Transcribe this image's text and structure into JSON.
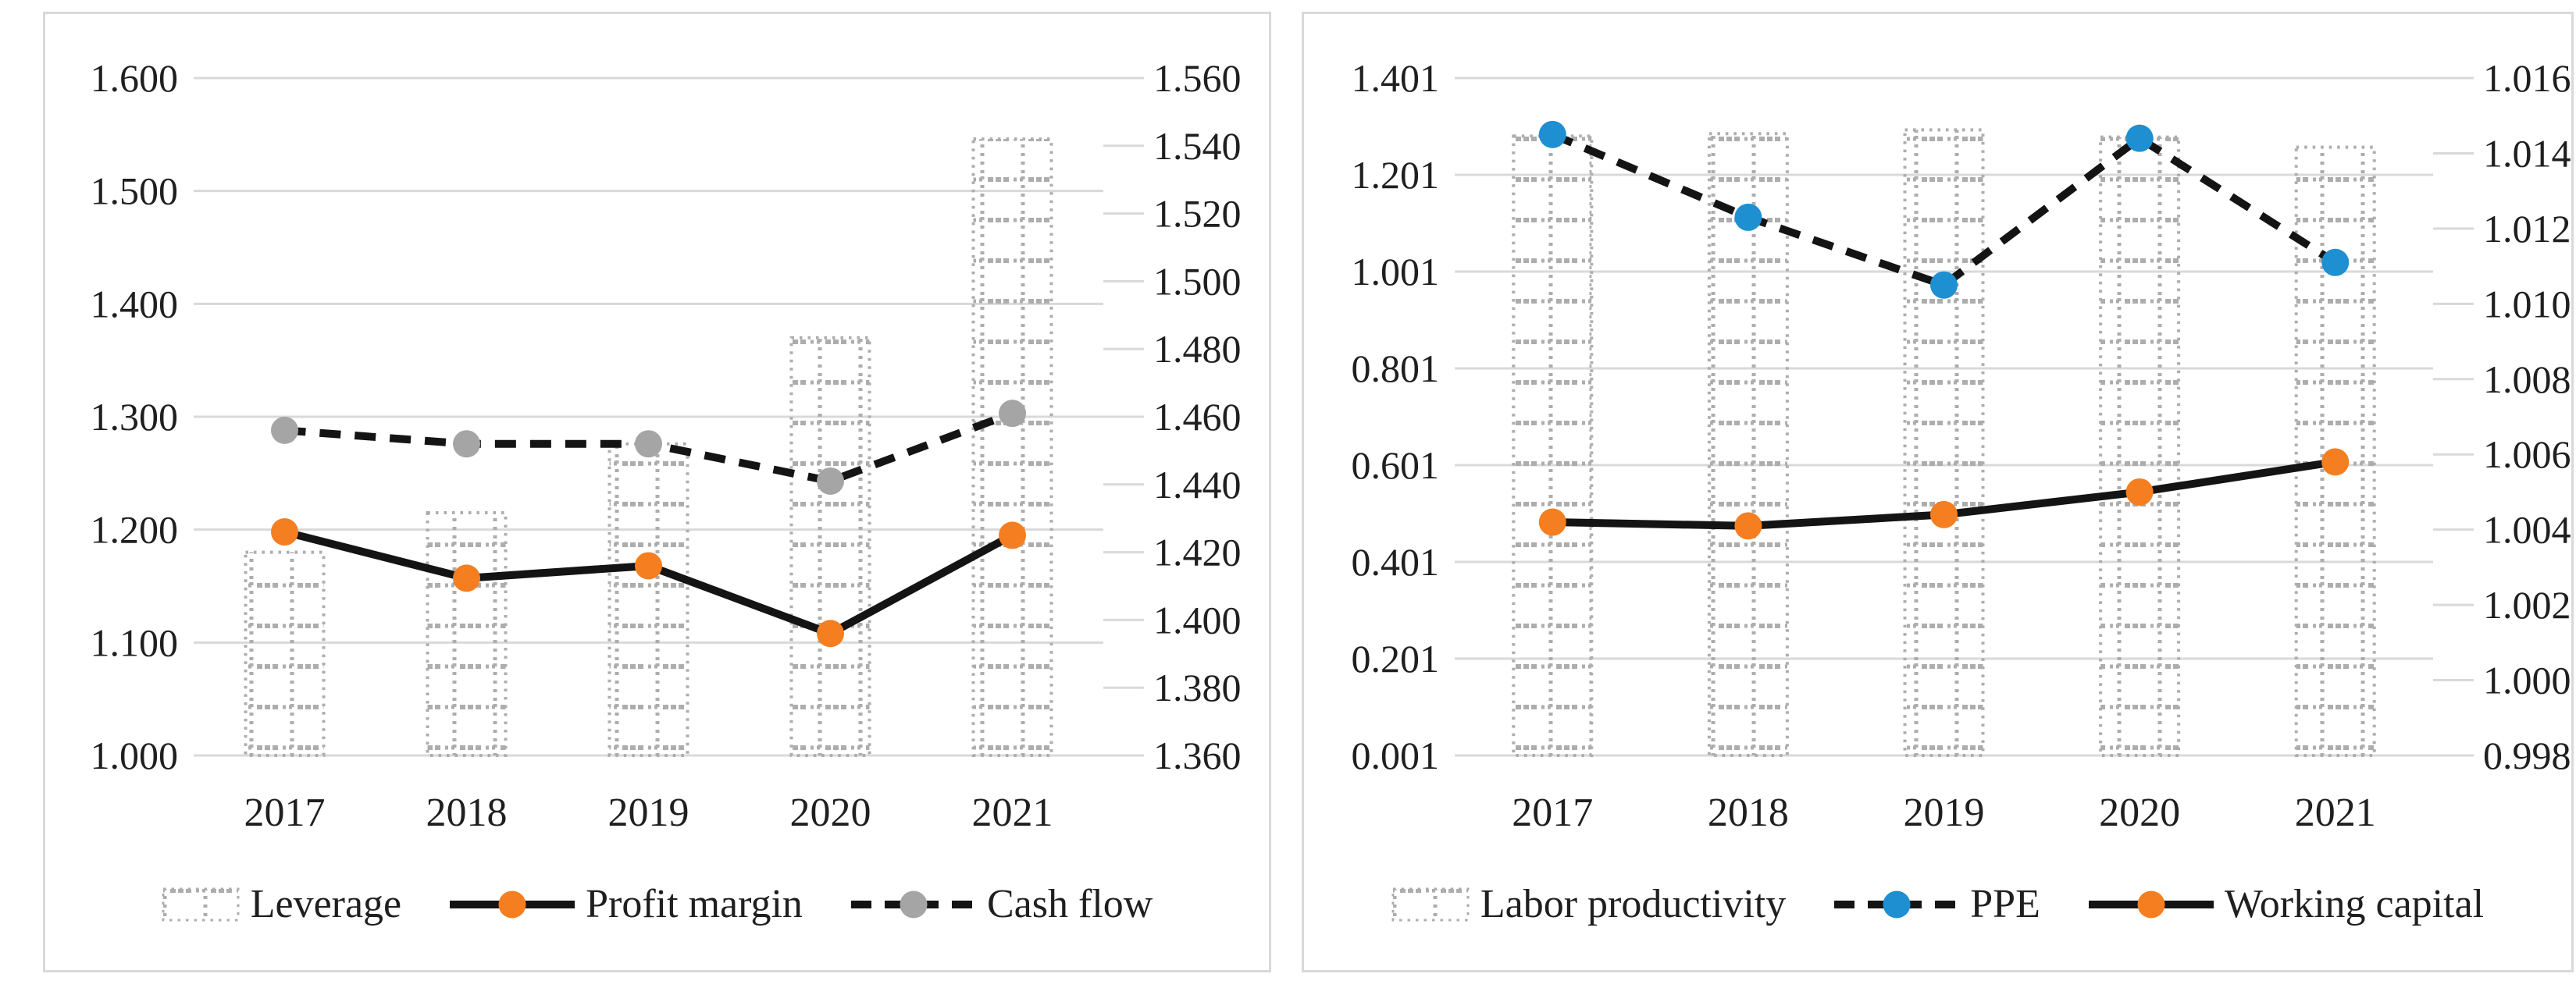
{
  "colors": {
    "background": "#ffffff",
    "panel_border": "#d9d9d9",
    "gridline": "#d9d9d9",
    "axis_text": "#1f1f1f",
    "pattern_gray": "#adadad",
    "line_black": "#141414",
    "orange_marker": "#f57e20",
    "gray_marker": "#a5a5a5",
    "blue_marker": "#1e8fd1"
  },
  "chart_data": [
    {
      "name": "left-combo-chart",
      "type": "bar",
      "subtype": "bar+line combo, dual y-axis, horizontal gridlines on, legend bottom",
      "title": "",
      "xlabel": "",
      "ylabel": "",
      "categories": [
        "2017",
        "2018",
        "2019",
        "2020",
        "2021"
      ],
      "left_axis": {
        "min": 1.0,
        "max": 1.6,
        "ticks": [
          "1.600",
          "1.500",
          "1.400",
          "1.300",
          "1.200",
          "1.100",
          "1.000"
        ]
      },
      "right_axis": {
        "min": 1.36,
        "max": 1.56,
        "ticks": [
          "1.560",
          "1.540",
          "1.520",
          "1.500",
          "1.480",
          "1.460",
          "1.440",
          "1.420",
          "1.400",
          "1.380",
          "1.360"
        ]
      },
      "series": [
        {
          "name": "Leverage",
          "type": "bar",
          "axis": "left",
          "fill": "pattern",
          "values": [
            1.18,
            1.215,
            1.276,
            1.37,
            1.546
          ]
        },
        {
          "name": "Profit margin",
          "type": "line",
          "line_style": "solid",
          "axis": "left",
          "marker_color_key": "orange_marker",
          "values": [
            1.198,
            1.157,
            1.168,
            1.108,
            1.195
          ]
        },
        {
          "name": "Cash flow",
          "type": "line",
          "line_style": "dashed",
          "axis": "right",
          "marker_color_key": "gray_marker",
          "values": [
            1.456,
            1.452,
            1.452,
            1.441,
            1.461
          ]
        }
      ]
    },
    {
      "name": "right-combo-chart",
      "type": "bar",
      "subtype": "bar+line combo, dual y-axis, horizontal gridlines on, legend bottom",
      "title": "",
      "xlabel": "",
      "ylabel": "",
      "categories": [
        "2017",
        "2018",
        "2019",
        "2020",
        "2021"
      ],
      "left_axis": {
        "min": 0.001,
        "max": 1.401,
        "ticks": [
          "1.401",
          "1.201",
          "1.001",
          "0.801",
          "0.601",
          "0.401",
          "0.201",
          "0.001"
        ]
      },
      "right_axis": {
        "min": 0.998,
        "max": 1.016,
        "ticks": [
          "1.016",
          "1.014",
          "1.012",
          "1.010",
          "1.008",
          "1.006",
          "1.004",
          "1.002",
          "1.000",
          "0.998"
        ]
      },
      "series": [
        {
          "name": "Labor productivity",
          "type": "bar",
          "axis": "left",
          "fill": "pattern",
          "values": [
            1.281,
            1.286,
            1.294,
            1.279,
            1.258
          ]
        },
        {
          "name": "PPE",
          "type": "line",
          "line_style": "dashed",
          "axis": "right",
          "marker_color_key": "blue_marker",
          "values": [
            1.0145,
            1.0123,
            1.0105,
            1.0144,
            1.0111
          ]
        },
        {
          "name": "Working capital",
          "type": "line",
          "line_style": "solid",
          "axis": "right",
          "marker_color_key": "orange_marker",
          "values": [
            1.0042,
            1.0041,
            1.0044,
            1.005,
            1.0058
          ]
        }
      ]
    }
  ]
}
